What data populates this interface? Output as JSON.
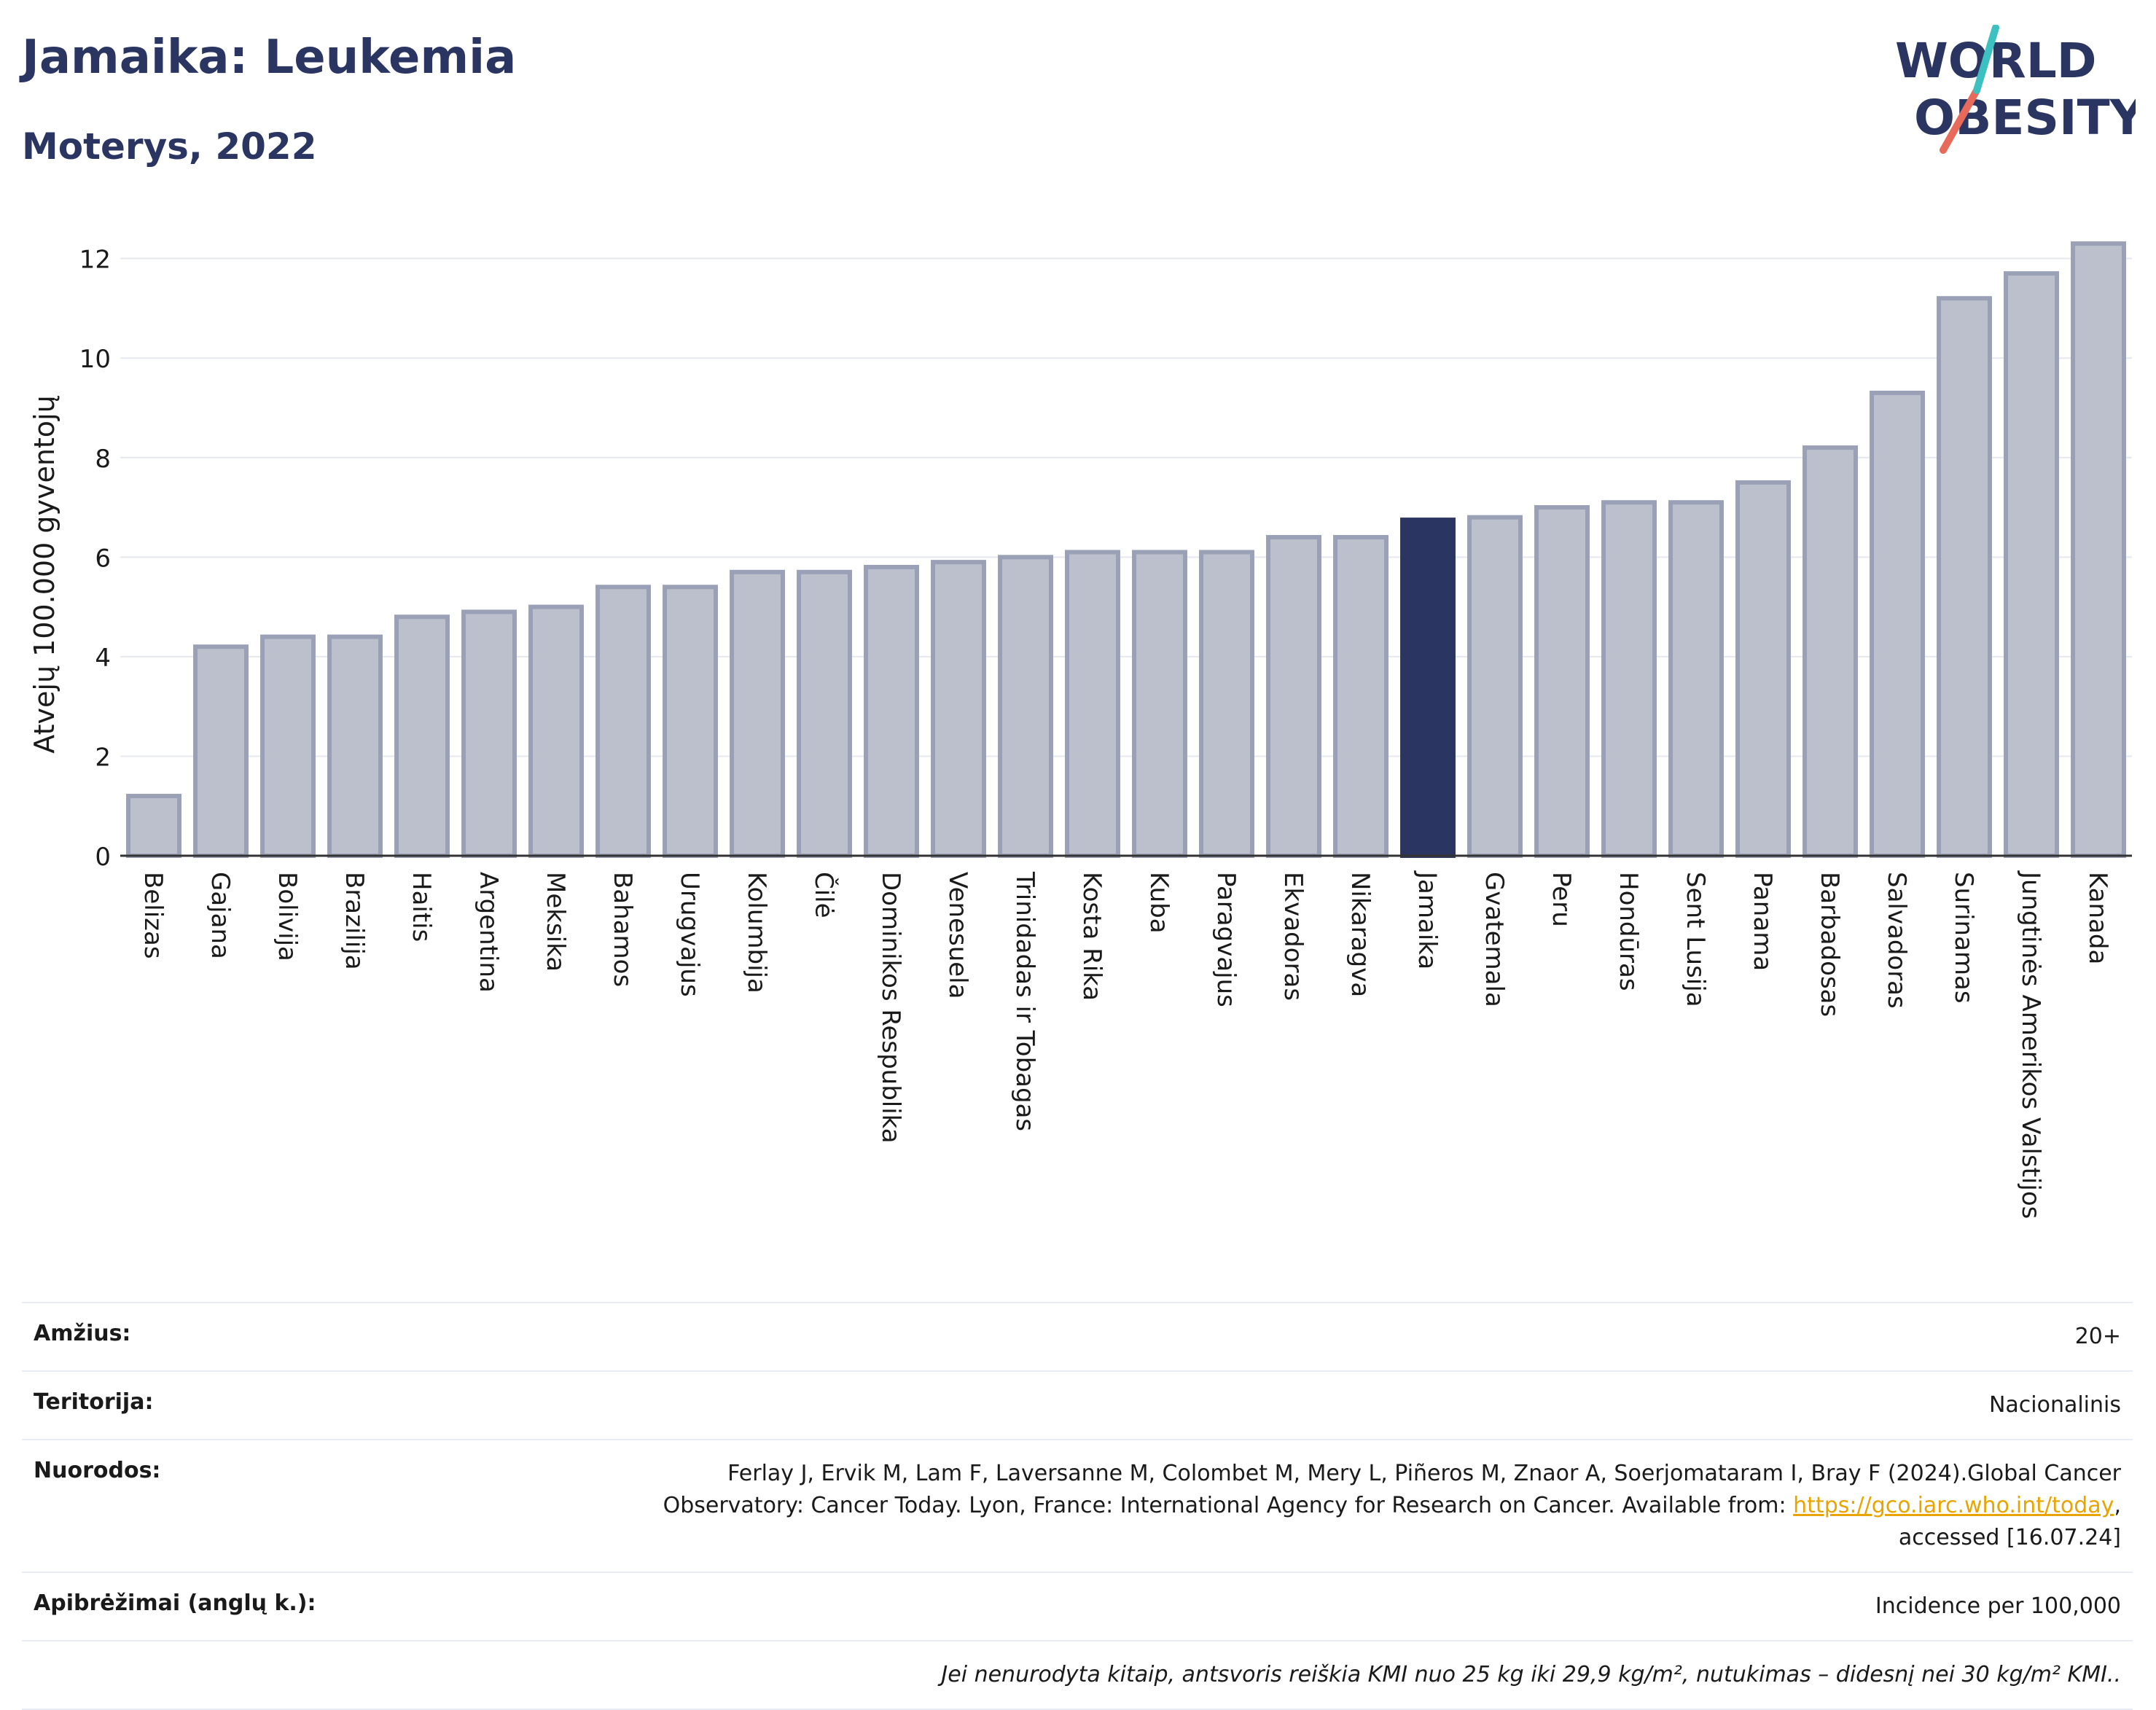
{
  "header": {
    "title": "Jamaika: Leukemia",
    "subtitle": "Moterys, 2022",
    "logo": {
      "line1": "WORLD",
      "line2": "OBESITY",
      "slash_color": "#e86a5a",
      "accent_color": "#3cc0c0"
    }
  },
  "colors": {
    "bar": "#bcc0cd",
    "bar_border": "#9aa0b6",
    "highlight": "#2b3561",
    "grid": "#e6e8ef",
    "text": "#1a1a1a"
  },
  "chart_data": {
    "type": "bar",
    "ylabel": "Atvejų 100.000 gyventojų",
    "ylim": [
      0,
      12.8
    ],
    "yticks": [
      0,
      2,
      4,
      6,
      8,
      10,
      12
    ],
    "grid": true,
    "highlight": "Jamaika",
    "categories": [
      "Belizas",
      "Gajana",
      "Bolivija",
      "Brazilija",
      "Haitis",
      "Argentina",
      "Meksika",
      "Bahamos",
      "Urugvajus",
      "Kolumbija",
      "Čilė",
      "Dominikos Respublika",
      "Venesuela",
      "Trinidadas ir Tobagas",
      "Kosta Rika",
      "Kuba",
      "Paragvajus",
      "Ekvadoras",
      "Nikaragva",
      "Jamaika",
      "Gvatemala",
      "Peru",
      "Hondūras",
      "Sent Lusija",
      "Panama",
      "Barbadosas",
      "Salvadoras",
      "Surinamas",
      "Jungtinės Amerikos Valstijos",
      "Kanada"
    ],
    "values": [
      1.2,
      4.2,
      4.4,
      4.4,
      4.8,
      4.9,
      5.0,
      5.4,
      5.4,
      5.7,
      5.7,
      5.8,
      5.9,
      6.0,
      6.1,
      6.1,
      6.1,
      6.4,
      6.4,
      6.75,
      6.8,
      7.0,
      7.1,
      7.1,
      7.5,
      8.2,
      9.3,
      11.2,
      11.7,
      12.3
    ]
  },
  "info": {
    "age_label": "Amžius:",
    "age_value": "20+",
    "territory_label": "Teritorija:",
    "territory_value": "Nacionalinis",
    "refs_label": "Nuorodos:",
    "refs_text_1": "Ferlay J, Ervik M, Lam F, Laversanne M, Colombet M, Mery L, Piñeros M, Znaor A, Soerjomataram I, Bray F (2024).Global Cancer",
    "refs_text_2": "Observatory: Cancer Today. Lyon, France: International Agency for Research on Cancer. Available from: ",
    "refs_link": "https://gco.iarc.who.int/today",
    "refs_text_3": ",",
    "refs_text_4": "accessed [16.07.24]",
    "defs_label": "Apibrėžimai (anglų k.):",
    "defs_value": "Incidence per 100,000",
    "note": "Jei nenurodyta kitaip, antsvoris reiškia KMI nuo 25 kg iki 29,9 kg/m², nutukimas – didesnį nei 30 kg/m² KMI.."
  }
}
